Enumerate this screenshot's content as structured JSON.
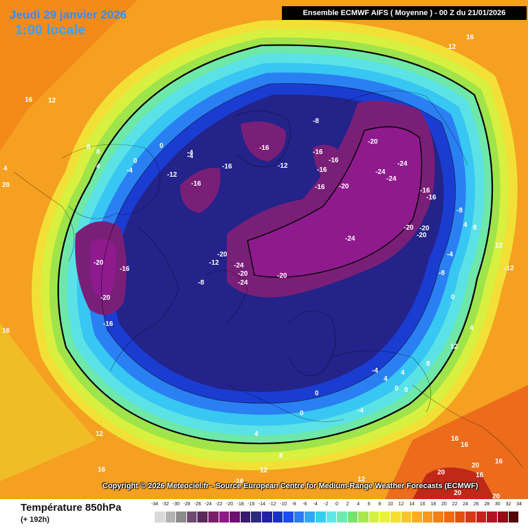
{
  "header": {
    "date": "Jeudi 29 janvier 2026",
    "time": "1:00 locale",
    "model_run": "Ensemble ECMWF AIFS  ( Moyenne )  - 00 Z du 21/01/2026"
  },
  "copyright": "Copyright © 2026 Meteociel.fr - Source European Centre for Medium-Range Weather Forecasts (ECMWF)",
  "legend": {
    "title": "Température 850hPa",
    "subtitle": "(+ 192h)",
    "ticks": [
      "-34",
      "-32",
      "-30",
      "-28",
      "-26",
      "-24",
      "-22",
      "-20",
      "-18",
      "-16",
      "-14",
      "-12",
      "-10",
      "-8",
      "-6",
      "-4",
      "-2",
      "0",
      "2",
      "4",
      "6",
      "8",
      "10",
      "12",
      "14",
      "16",
      "18",
      "20",
      "22",
      "24",
      "26",
      "28",
      "30",
      "32",
      "34"
    ],
    "colors": [
      "#d9d9d9",
      "#b3b3b3",
      "#8c8c8c",
      "#6e4b6e",
      "#5a2a5a",
      "#7a1f6a",
      "#8e1a86",
      "#6d1070",
      "#3a1a6a",
      "#2a2a78",
      "#2020a0",
      "#1a2fc8",
      "#1a4cf0",
      "#2a7af5",
      "#35a6f5",
      "#39cdf0",
      "#5de8e8",
      "#70e8b0",
      "#7ae070",
      "#a8e84a",
      "#d4f040",
      "#eaf23a",
      "#f5e030",
      "#f5c829",
      "#f5b020",
      "#f59a1a",
      "#f08018",
      "#ec6a15",
      "#e25012",
      "#d8381a",
      "#c8201c",
      "#b01420",
      "#901018",
      "#500808"
    ],
    "colors_note_count": "34"
  },
  "map_labels": [
    {
      "text": "16"
    },
    {
      "text": "12"
    },
    {
      "text": "16"
    },
    {
      "text": "12"
    },
    {
      "text": "8"
    },
    {
      "text": "8"
    },
    {
      "text": "4"
    },
    {
      "text": "0"
    },
    {
      "text": "-4"
    },
    {
      "text": "0"
    },
    {
      "text": "-4"
    },
    {
      "text": "4"
    },
    {
      "text": "-4"
    },
    {
      "text": "-12"
    },
    {
      "text": "-16"
    },
    {
      "text": "-16"
    },
    {
      "text": "-16"
    },
    {
      "text": "-12"
    },
    {
      "text": "-8"
    },
    {
      "text": "-16"
    },
    {
      "text": "-16"
    },
    {
      "text": "-16"
    },
    {
      "text": "-16"
    },
    {
      "text": "-20"
    },
    {
      "text": "-24"
    },
    {
      "text": "-24"
    },
    {
      "text": "-24"
    },
    {
      "text": "-20"
    },
    {
      "text": "-16"
    },
    {
      "text": "-16"
    },
    {
      "text": "-8"
    },
    {
      "text": "4"
    },
    {
      "text": "8"
    },
    {
      "text": "12"
    },
    {
      "text": "-12"
    },
    {
      "text": "-20"
    },
    {
      "text": "-20"
    },
    {
      "text": "-20"
    },
    {
      "text": "-24"
    },
    {
      "text": "-4"
    },
    {
      "text": "-8"
    },
    {
      "text": "0"
    },
    {
      "text": "4"
    },
    {
      "text": "-20"
    },
    {
      "text": "-16"
    },
    {
      "text": "-20"
    },
    {
      "text": "-16"
    },
    {
      "text": "-12"
    },
    {
      "text": "-20"
    },
    {
      "text": "-24"
    },
    {
      "text": "-20"
    },
    {
      "text": "-24"
    },
    {
      "text": "-8"
    },
    {
      "text": "-20"
    },
    {
      "text": "-4"
    },
    {
      "text": "0"
    },
    {
      "text": "4"
    },
    {
      "text": "0"
    },
    {
      "text": "-4"
    },
    {
      "text": "0"
    },
    {
      "text": "4"
    },
    {
      "text": "8"
    },
    {
      "text": "12"
    },
    {
      "text": "16"
    },
    {
      "text": "16"
    },
    {
      "text": "20"
    },
    {
      "text": "20"
    },
    {
      "text": "16"
    },
    {
      "text": "20"
    },
    {
      "text": "12"
    },
    {
      "text": "16"
    },
    {
      "text": "8"
    },
    {
      "text": "12"
    },
    {
      "text": "16"
    },
    {
      "text": "4"
    },
    {
      "text": "0"
    },
    {
      "text": "16"
    },
    {
      "text": "20"
    },
    {
      "text": "20"
    },
    {
      "text": "-16"
    },
    {
      "text": "12"
    }
  ]
}
